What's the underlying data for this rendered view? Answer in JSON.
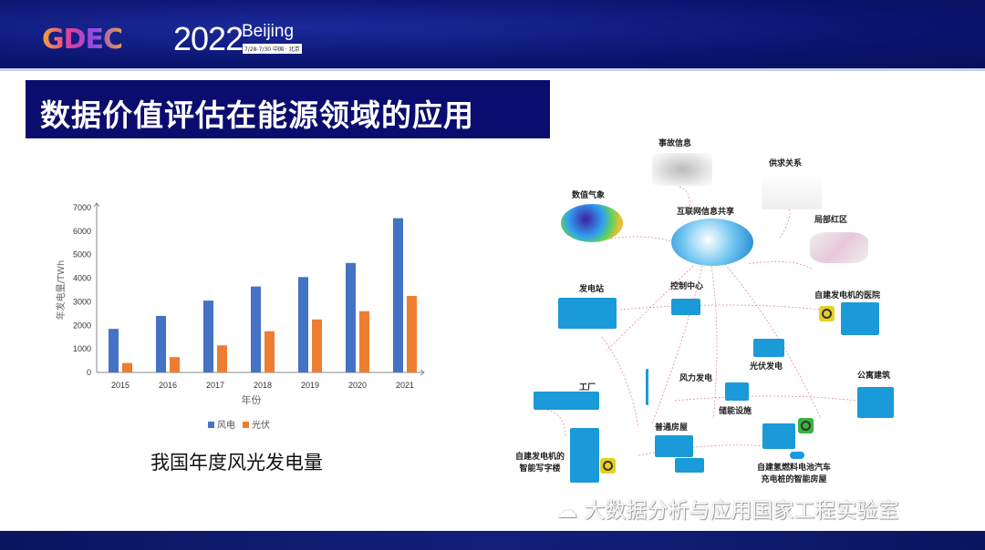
{
  "header": {
    "logo": "GDEC",
    "year": "2022",
    "city": "Beijing",
    "dates": "7/28-7/30 中国 · 北京"
  },
  "slide_title": "数据价值评估在能源领域的应用",
  "caption": "我国年度风光发电量",
  "watermark": "大数据分析与应用国家工程实验室",
  "chart_data": {
    "type": "bar",
    "title": "",
    "xlabel": "年份",
    "ylabel": "年发电量/TWh",
    "categories": [
      "2015",
      "2016",
      "2017",
      "2018",
      "2019",
      "2020",
      "2021"
    ],
    "ylim": [
      0,
      7000
    ],
    "yticks": [
      "0",
      "1000",
      "2000",
      "3000",
      "4000",
      "5000",
      "6000",
      "7000"
    ],
    "grid": false,
    "legend": "bottom",
    "series": [
      {
        "name": "风电",
        "color": "#4472c4",
        "values": [
          1850,
          2400,
          3050,
          3650,
          4050,
          4650,
          6550
        ]
      },
      {
        "name": "光伏",
        "color": "#ed7d31",
        "values": [
          400,
          650,
          1150,
          1750,
          2250,
          2600,
          3250
        ]
      }
    ]
  },
  "diagram": {
    "hub": "互联网信息共享",
    "sources": [
      "事故信息",
      "供求关系",
      "数值气象",
      "局部红区"
    ],
    "nodes": {
      "power_station": "发电站",
      "control": "控制中心",
      "hospital": "自建发电机的医院",
      "pv": "光伏发电",
      "factory": "工厂",
      "wind": "风力发电",
      "apartment": "公寓建筑",
      "storage": "储能设施",
      "house": "普通房屋",
      "office": "自建发电机的\n智能写字楼",
      "smart_home": "自建氢燃料电池汽车\n充电桩的智能房屋"
    }
  }
}
